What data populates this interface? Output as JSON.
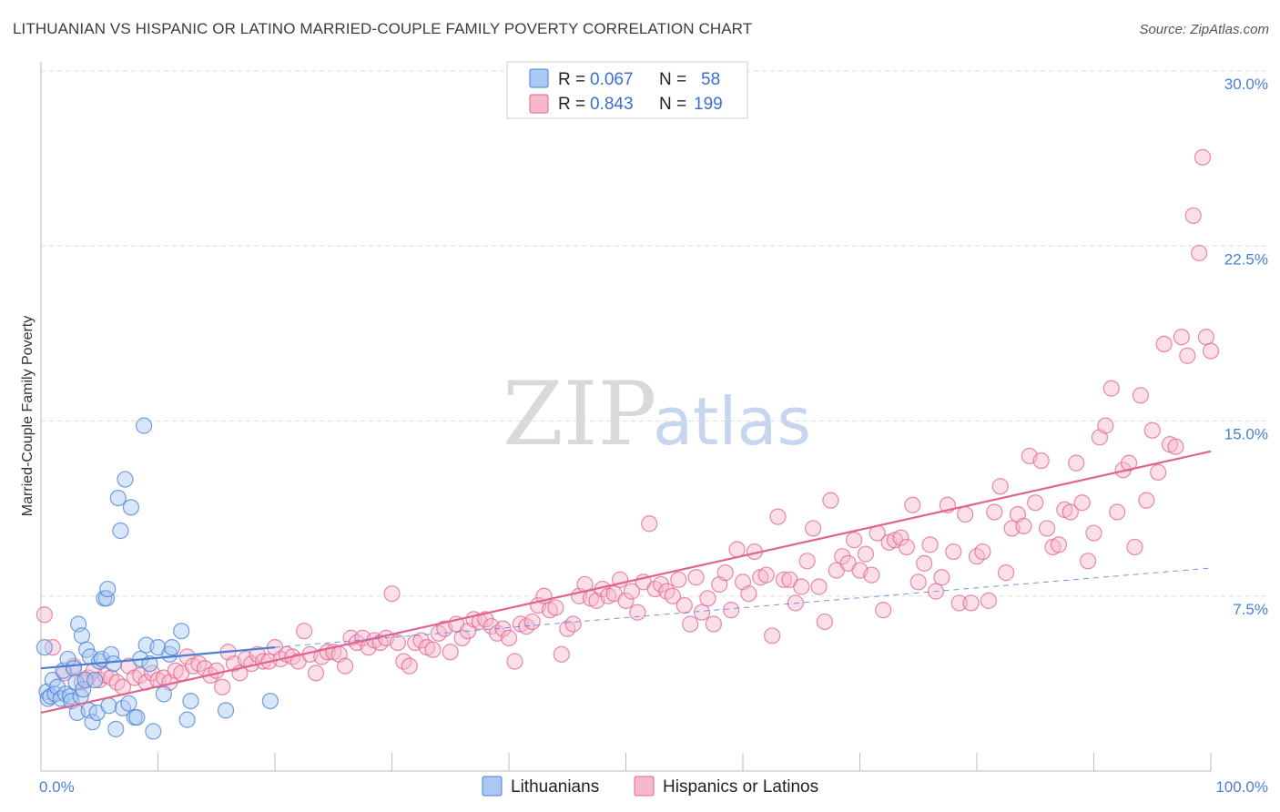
{
  "title": "LITHUANIAN VS HISPANIC OR LATINO MARRIED-COUPLE FAMILY POVERTY CORRELATION CHART",
  "source": "Source: ZipAtlas.com",
  "watermark": {
    "zip": "ZIP",
    "atlas": "atlas"
  },
  "colors": {
    "blue": "#4a7fd4",
    "blue_fill": "#a9c8f2",
    "pink": "#e0648c",
    "pink_fill": "#f7b8cb",
    "grid": "#dddddd"
  },
  "legend": {
    "rows": [
      {
        "r_label": "R =",
        "r_value": "0.067",
        "n_label": "N =",
        "n_value": "58",
        "color": "blue"
      },
      {
        "r_label": "R =",
        "r_value": "0.843",
        "n_label": "N =",
        "n_value": "199",
        "color": "pink"
      }
    ]
  },
  "bottom_legend": [
    {
      "label": "Lithuanians",
      "color": "blue"
    },
    {
      "label": "Hispanics or Latinos",
      "color": "pink"
    }
  ],
  "chart_data": {
    "type": "scatter",
    "title": "LITHUANIAN VS HISPANIC OR LATINO MARRIED-COUPLE FAMILY POVERTY CORRELATION CHART",
    "xlabel": "",
    "ylabel": "Married-Couple Family Poverty",
    "xlim": [
      0,
      100
    ],
    "ylim": [
      0,
      30
    ],
    "x_tick_labels": [
      "0.0%",
      "100.0%"
    ],
    "y_tick_labels": [
      "7.5%",
      "15.0%",
      "22.5%",
      "30.0%"
    ],
    "y_ticks": [
      7.5,
      15.0,
      22.5,
      30.0
    ],
    "grid": true,
    "legend_position": "top-center",
    "series": [
      {
        "name": "Lithuanians",
        "color": "blue",
        "trend": {
          "x": [
            0,
            20
          ],
          "y": [
            4.4,
            5.3
          ],
          "dashed_extension": {
            "x": [
              20,
              100
            ],
            "y": [
              5.3,
              8.7
            ]
          }
        },
        "points": [
          [
            0.3,
            5.3
          ],
          [
            0.5,
            3.4
          ],
          [
            0.6,
            3.1
          ],
          [
            0.8,
            3.2
          ],
          [
            1.0,
            3.9
          ],
          [
            1.2,
            3.3
          ],
          [
            1.4,
            3.6
          ],
          [
            1.7,
            3.1
          ],
          [
            1.9,
            4.3
          ],
          [
            2.1,
            3.3
          ],
          [
            2.3,
            4.8
          ],
          [
            2.5,
            3.2
          ],
          [
            2.6,
            3.0
          ],
          [
            2.8,
            4.4
          ],
          [
            3.0,
            3.8
          ],
          [
            3.1,
            2.5
          ],
          [
            3.2,
            6.3
          ],
          [
            3.4,
            3.2
          ],
          [
            3.5,
            5.8
          ],
          [
            3.6,
            3.5
          ],
          [
            3.8,
            3.9
          ],
          [
            3.9,
            5.2
          ],
          [
            4.1,
            2.6
          ],
          [
            4.2,
            4.9
          ],
          [
            4.4,
            2.1
          ],
          [
            4.6,
            3.9
          ],
          [
            4.8,
            2.5
          ],
          [
            5.0,
            4.7
          ],
          [
            5.2,
            4.8
          ],
          [
            5.4,
            7.4
          ],
          [
            5.6,
            7.4
          ],
          [
            5.7,
            7.8
          ],
          [
            5.8,
            2.8
          ],
          [
            6.0,
            5.0
          ],
          [
            6.2,
            4.6
          ],
          [
            6.4,
            1.8
          ],
          [
            6.6,
            11.7
          ],
          [
            6.8,
            10.3
          ],
          [
            7.0,
            2.7
          ],
          [
            7.2,
            12.5
          ],
          [
            7.5,
            2.9
          ],
          [
            7.7,
            11.3
          ],
          [
            8.0,
            2.3
          ],
          [
            8.2,
            2.3
          ],
          [
            8.5,
            4.8
          ],
          [
            8.8,
            14.8
          ],
          [
            9.0,
            5.4
          ],
          [
            9.3,
            4.6
          ],
          [
            9.6,
            1.7
          ],
          [
            10.0,
            5.3
          ],
          [
            10.5,
            3.3
          ],
          [
            11.0,
            5.0
          ],
          [
            11.2,
            5.3
          ],
          [
            12.0,
            6.0
          ],
          [
            12.5,
            2.2
          ],
          [
            12.8,
            3.0
          ],
          [
            15.8,
            2.6
          ],
          [
            19.6,
            3.0
          ]
        ]
      },
      {
        "name": "Hispanics or Latinos",
        "color": "pink",
        "trend": {
          "x": [
            0,
            100
          ],
          "y": [
            2.5,
            13.7
          ]
        },
        "points": [
          [
            0.3,
            6.7
          ],
          [
            1.0,
            5.3
          ],
          [
            2.0,
            4.2
          ],
          [
            2.8,
            4.5
          ],
          [
            3.5,
            3.8
          ],
          [
            4.0,
            4.0
          ],
          [
            4.5,
            4.3
          ],
          [
            5.0,
            3.9
          ],
          [
            5.5,
            4.1
          ],
          [
            6.0,
            4.0
          ],
          [
            6.5,
            3.8
          ],
          [
            7.0,
            3.6
          ],
          [
            7.5,
            4.5
          ],
          [
            8.0,
            4.0
          ],
          [
            8.5,
            4.1
          ],
          [
            9.0,
            3.8
          ],
          [
            9.5,
            4.2
          ],
          [
            10.0,
            3.9
          ],
          [
            10.5,
            4.0
          ],
          [
            11.0,
            3.8
          ],
          [
            11.5,
            4.3
          ],
          [
            12.0,
            4.2
          ],
          [
            12.5,
            4.9
          ],
          [
            13.0,
            4.5
          ],
          [
            13.5,
            4.6
          ],
          [
            14.0,
            4.4
          ],
          [
            14.5,
            4.1
          ],
          [
            15.0,
            4.3
          ],
          [
            15.5,
            3.6
          ],
          [
            16.0,
            5.1
          ],
          [
            16.5,
            4.6
          ],
          [
            17.0,
            4.2
          ],
          [
            17.5,
            4.8
          ],
          [
            18.0,
            4.6
          ],
          [
            18.5,
            5.0
          ],
          [
            19.0,
            4.7
          ],
          [
            19.5,
            4.7
          ],
          [
            20.0,
            5.3
          ],
          [
            20.5,
            4.8
          ],
          [
            21.0,
            5.0
          ],
          [
            21.5,
            4.9
          ],
          [
            22.0,
            4.7
          ],
          [
            22.5,
            6.0
          ],
          [
            23.0,
            5.0
          ],
          [
            23.5,
            4.2
          ],
          [
            24.0,
            4.9
          ],
          [
            24.5,
            5.1
          ],
          [
            25.0,
            5.1
          ],
          [
            25.5,
            5.0
          ],
          [
            26.0,
            4.5
          ],
          [
            26.5,
            5.7
          ],
          [
            27.0,
            5.5
          ],
          [
            27.5,
            5.7
          ],
          [
            28.0,
            5.3
          ],
          [
            28.5,
            5.6
          ],
          [
            29.0,
            5.5
          ],
          [
            29.5,
            5.7
          ],
          [
            30.0,
            7.6
          ],
          [
            30.5,
            5.5
          ],
          [
            31.0,
            4.7
          ],
          [
            31.5,
            4.5
          ],
          [
            32.0,
            5.5
          ],
          [
            32.5,
            5.6
          ],
          [
            33.0,
            5.3
          ],
          [
            33.5,
            5.2
          ],
          [
            34.0,
            5.9
          ],
          [
            34.5,
            6.1
          ],
          [
            35.0,
            5.1
          ],
          [
            35.5,
            6.3
          ],
          [
            36.0,
            5.7
          ],
          [
            36.5,
            6.0
          ],
          [
            37.0,
            6.5
          ],
          [
            37.5,
            6.4
          ],
          [
            38.0,
            6.5
          ],
          [
            38.5,
            6.2
          ],
          [
            39.0,
            5.9
          ],
          [
            39.5,
            6.1
          ],
          [
            40.0,
            5.7
          ],
          [
            40.5,
            4.7
          ],
          [
            41.0,
            6.3
          ],
          [
            41.5,
            6.2
          ],
          [
            42.0,
            6.4
          ],
          [
            42.5,
            7.1
          ],
          [
            43.0,
            7.5
          ],
          [
            43.5,
            6.9
          ],
          [
            44.0,
            7.0
          ],
          [
            44.5,
            5.0
          ],
          [
            45.0,
            6.1
          ],
          [
            45.5,
            6.3
          ],
          [
            46.0,
            7.5
          ],
          [
            46.5,
            8.0
          ],
          [
            47.0,
            7.4
          ],
          [
            47.5,
            7.3
          ],
          [
            48.0,
            7.8
          ],
          [
            48.5,
            7.5
          ],
          [
            49.0,
            7.6
          ],
          [
            49.5,
            8.2
          ],
          [
            50.0,
            7.3
          ],
          [
            50.5,
            7.7
          ],
          [
            51.0,
            6.8
          ],
          [
            51.5,
            8.1
          ],
          [
            52.0,
            10.6
          ],
          [
            52.5,
            7.8
          ],
          [
            53.0,
            8.0
          ],
          [
            53.5,
            7.7
          ],
          [
            54.0,
            7.5
          ],
          [
            54.5,
            8.2
          ],
          [
            55.0,
            7.1
          ],
          [
            55.5,
            6.3
          ],
          [
            56.0,
            8.3
          ],
          [
            56.5,
            6.8
          ],
          [
            57.0,
            7.4
          ],
          [
            57.5,
            6.3
          ],
          [
            58.0,
            8.0
          ],
          [
            58.5,
            8.5
          ],
          [
            59.0,
            6.9
          ],
          [
            59.5,
            9.5
          ],
          [
            60.0,
            8.1
          ],
          [
            60.5,
            7.6
          ],
          [
            61.0,
            9.4
          ],
          [
            61.5,
            8.3
          ],
          [
            62.0,
            8.4
          ],
          [
            62.5,
            5.8
          ],
          [
            63.0,
            10.9
          ],
          [
            63.5,
            8.2
          ],
          [
            64.0,
            8.2
          ],
          [
            64.5,
            7.2
          ],
          [
            65.0,
            7.9
          ],
          [
            65.5,
            9.0
          ],
          [
            66.0,
            10.4
          ],
          [
            66.5,
            7.9
          ],
          [
            67.0,
            6.4
          ],
          [
            67.5,
            11.6
          ],
          [
            68.0,
            8.6
          ],
          [
            68.5,
            9.2
          ],
          [
            69.0,
            8.9
          ],
          [
            69.5,
            9.9
          ],
          [
            70.0,
            8.6
          ],
          [
            70.5,
            9.3
          ],
          [
            71.0,
            8.4
          ],
          [
            71.5,
            10.2
          ],
          [
            72.0,
            6.9
          ],
          [
            72.5,
            9.8
          ],
          [
            73.0,
            9.9
          ],
          [
            73.5,
            10.0
          ],
          [
            74.0,
            9.6
          ],
          [
            74.5,
            11.4
          ],
          [
            75.0,
            8.1
          ],
          [
            75.5,
            8.9
          ],
          [
            76.0,
            9.7
          ],
          [
            76.5,
            7.7
          ],
          [
            77.0,
            8.3
          ],
          [
            77.5,
            11.4
          ],
          [
            78.0,
            9.4
          ],
          [
            78.5,
            7.2
          ],
          [
            79.0,
            11.0
          ],
          [
            79.5,
            7.2
          ],
          [
            80.0,
            9.2
          ],
          [
            80.5,
            9.4
          ],
          [
            81.0,
            7.3
          ],
          [
            81.5,
            11.1
          ],
          [
            82.0,
            12.2
          ],
          [
            82.5,
            8.5
          ],
          [
            83.0,
            10.4
          ],
          [
            83.5,
            11.0
          ],
          [
            84.0,
            10.5
          ],
          [
            84.5,
            13.5
          ],
          [
            85.0,
            11.5
          ],
          [
            85.5,
            13.3
          ],
          [
            86.0,
            10.4
          ],
          [
            86.5,
            9.6
          ],
          [
            87.0,
            9.7
          ],
          [
            87.5,
            11.2
          ],
          [
            88.0,
            11.1
          ],
          [
            88.5,
            13.2
          ],
          [
            89.0,
            11.5
          ],
          [
            89.5,
            9.0
          ],
          [
            90.0,
            10.2
          ],
          [
            90.5,
            14.3
          ],
          [
            91.0,
            14.8
          ],
          [
            91.5,
            16.4
          ],
          [
            92.0,
            11.1
          ],
          [
            92.5,
            12.9
          ],
          [
            93.0,
            13.2
          ],
          [
            93.5,
            9.6
          ],
          [
            94.0,
            16.1
          ],
          [
            94.5,
            11.6
          ],
          [
            95.0,
            14.6
          ],
          [
            95.5,
            12.8
          ],
          [
            96.0,
            18.3
          ],
          [
            96.5,
            14.0
          ],
          [
            97.0,
            13.9
          ],
          [
            97.5,
            18.6
          ],
          [
            98.0,
            17.8
          ],
          [
            98.5,
            23.8
          ],
          [
            99.0,
            22.2
          ],
          [
            99.3,
            26.3
          ],
          [
            99.6,
            18.6
          ],
          [
            100.0,
            18.0
          ]
        ]
      }
    ]
  }
}
